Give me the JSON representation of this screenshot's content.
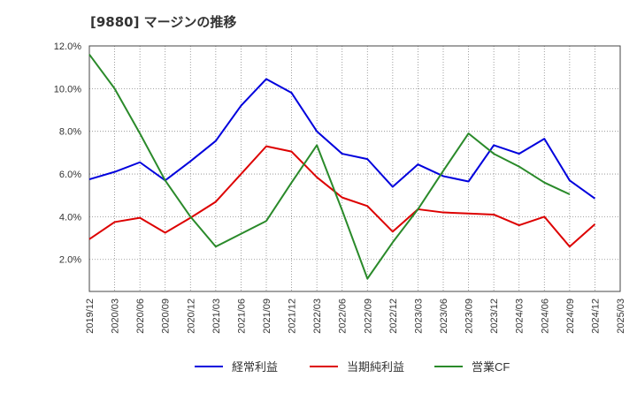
{
  "chart_data": {
    "type": "line",
    "title": "[9880]  マージンの推移",
    "x": [
      "2019/12",
      "2020/03",
      "2020/06",
      "2020/09",
      "2020/12",
      "2021/03",
      "2021/06",
      "2021/09",
      "2021/12",
      "2022/03",
      "2022/06",
      "2022/09",
      "2022/12",
      "2023/03",
      "2023/06",
      "2023/09",
      "2023/12",
      "2024/03",
      "2024/06",
      "2024/09",
      "2024/12",
      "2025/03"
    ],
    "yticks": [
      "2.0%",
      "4.0%",
      "6.0%",
      "8.0%",
      "10.0%",
      "12.0%"
    ],
    "ylim": [
      0.5,
      12.0
    ],
    "grid": true,
    "legend_position": "bottom",
    "series": [
      {
        "name": "経常利益",
        "color": "#0000dd",
        "values": [
          5.75,
          6.1,
          6.55,
          5.7,
          6.6,
          7.55,
          9.2,
          10.45,
          9.8,
          8.0,
          6.95,
          6.7,
          5.4,
          6.45,
          5.9,
          5.65,
          7.35,
          6.95,
          7.65,
          5.7,
          4.85,
          null
        ]
      },
      {
        "name": "当期純利益",
        "color": "#dd0000",
        "values": [
          2.95,
          3.75,
          3.95,
          3.25,
          3.95,
          4.7,
          6.0,
          7.3,
          7.05,
          5.85,
          4.9,
          4.5,
          3.3,
          4.35,
          4.2,
          4.15,
          4.1,
          3.6,
          4.0,
          2.6,
          3.65,
          null
        ]
      },
      {
        "name": "営業CF",
        "color": "#2a8a2a",
        "values": [
          11.6,
          10.0,
          7.9,
          5.7,
          4.0,
          2.6,
          3.2,
          3.8,
          5.6,
          7.35,
          4.3,
          1.1,
          2.8,
          4.35,
          6.15,
          7.9,
          6.95,
          6.35,
          5.6,
          5.05,
          null,
          null
        ]
      }
    ]
  }
}
